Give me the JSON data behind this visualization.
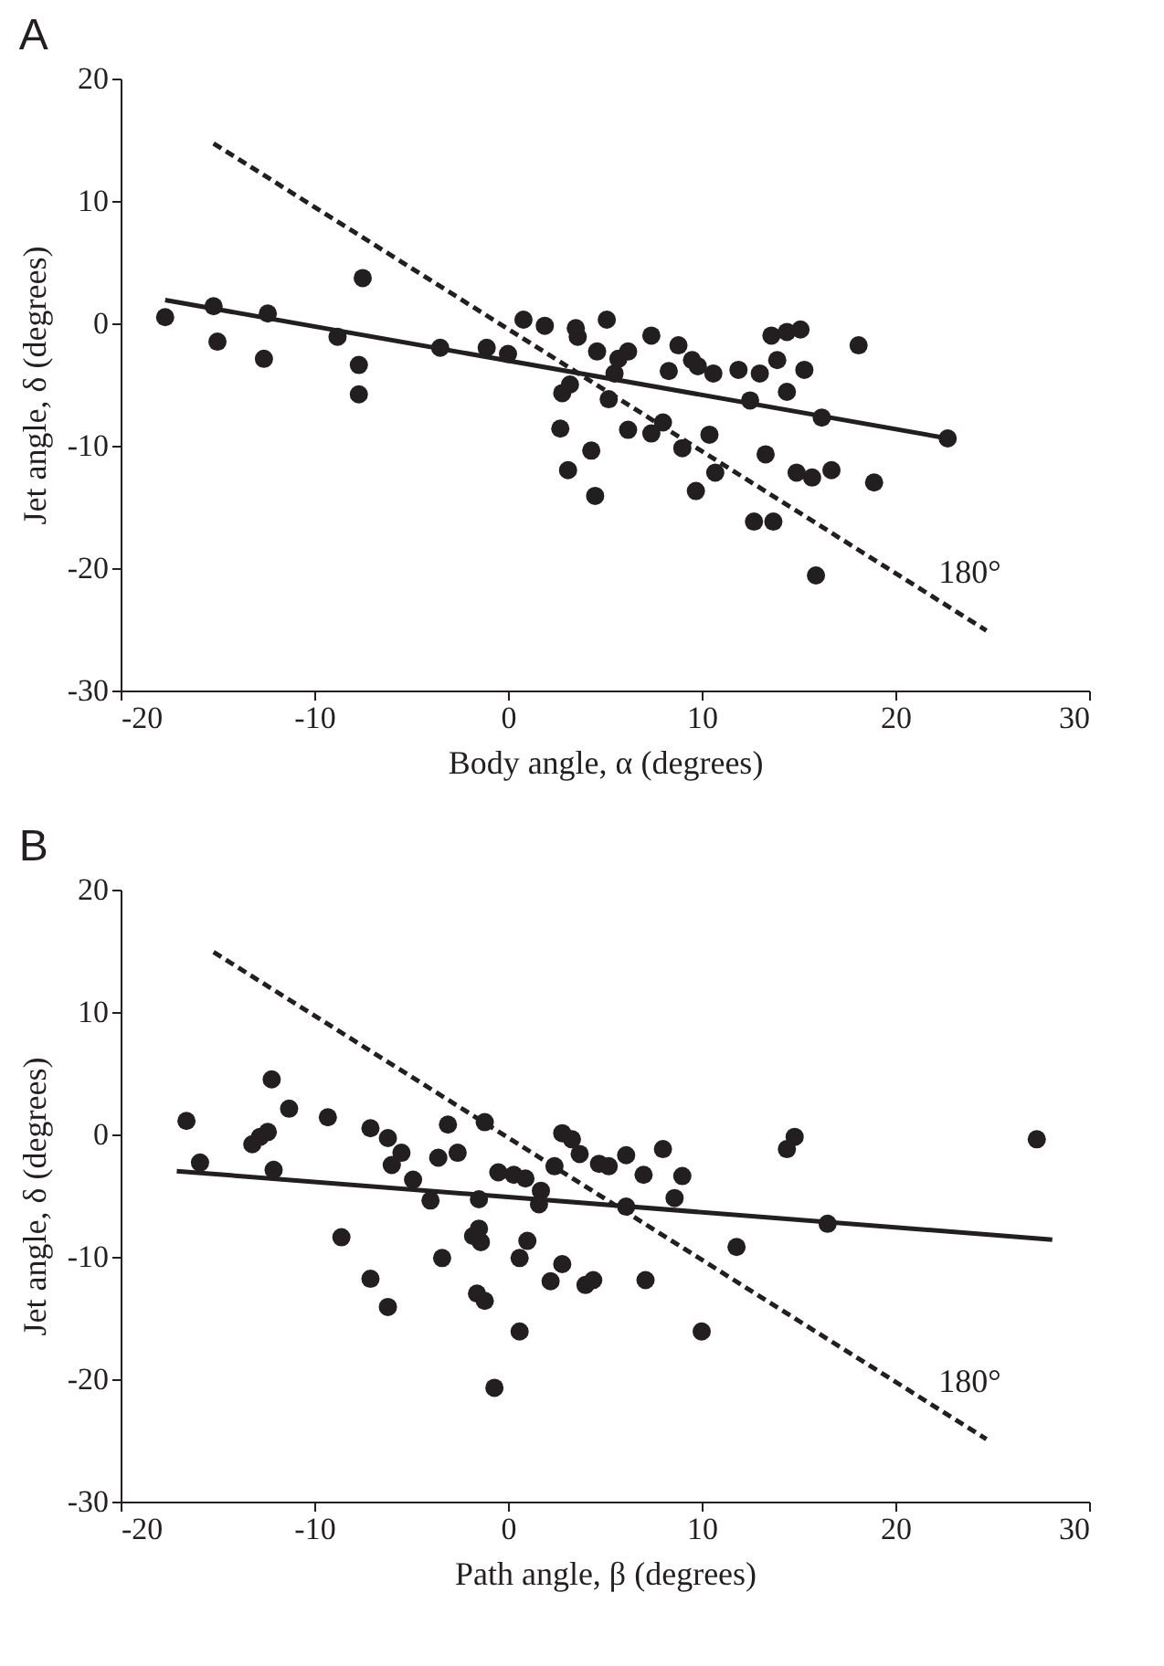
{
  "chart_data": [
    {
      "type": "scatter",
      "title": "A",
      "xlabel": "Body angle, α (degrees)",
      "ylabel": "Jet angle, δ (degrees)",
      "xlim": [
        -20,
        30
      ],
      "ylim": [
        -30,
        20
      ],
      "xticks": [
        -20,
        -10,
        0,
        10,
        20,
        30
      ],
      "yticks": [
        -30,
        -20,
        -10,
        0,
        10,
        20
      ],
      "series": [
        {
          "marker": "circle",
          "color": "#231f20",
          "x": [
            -17.7,
            -15.2,
            -15.0,
            -12.4,
            -12.6,
            -8.8,
            -7.7,
            -7.7,
            -7.5,
            -3.5,
            -1.1,
            0.0,
            0.8,
            1.9,
            3.5,
            3.6,
            5.1,
            4.6,
            6.2,
            5.7,
            5.5,
            3.2,
            2.8,
            5.2,
            2.7,
            6.2,
            7.4,
            4.3,
            3.1,
            4.5,
            7.4,
            8.8,
            9.5,
            9.8,
            8.3,
            10.6,
            11.9,
            13.0,
            13.9,
            15.3,
            14.4,
            12.5,
            16.2,
            13.6,
            14.4,
            15.1,
            18.1,
            22.7,
            8.0,
            9.0,
            10.4,
            10.7,
            9.7,
            13.3,
            14.9,
            15.7,
            16.7,
            18.9,
            12.7,
            13.7,
            15.9
          ],
          "values": [
            0.5,
            1.4,
            -1.5,
            0.8,
            -2.9,
            -1.1,
            -3.4,
            -5.8,
            3.7,
            -2.0,
            -2.0,
            -2.5,
            0.3,
            -0.2,
            -0.4,
            -1.1,
            0.3,
            -2.3,
            -2.3,
            -2.9,
            -4.1,
            -5.0,
            -5.7,
            -6.2,
            -8.6,
            -8.7,
            -9.0,
            -10.4,
            -12.0,
            -14.1,
            -1.0,
            -1.8,
            -3.0,
            -3.5,
            -3.9,
            -4.1,
            -3.8,
            -4.1,
            -3.0,
            -3.8,
            -5.6,
            -6.3,
            -7.7,
            -1.0,
            -0.7,
            -0.5,
            -1.8,
            -9.4,
            -8.1,
            -10.2,
            -9.1,
            -12.2,
            -13.7,
            -10.7,
            -12.2,
            -12.6,
            -12.0,
            -13.0,
            -16.2,
            -16.2,
            -20.6
          ]
        },
        {
          "type": "line",
          "line_style": "solid",
          "color": "#231f20",
          "x": [
            -17.7,
            22.7
          ],
          "values": [
            1.9,
            -9.4
          ]
        },
        {
          "type": "line",
          "line_style": "dashed",
          "name": "180°",
          "color": "#231f20",
          "x": [
            -15.2,
            24.7
          ],
          "values": [
            14.7,
            -25.1
          ]
        }
      ]
    },
    {
      "type": "scatter",
      "title": "B",
      "xlabel": "Path angle, β (degrees)",
      "ylabel": "Jet angle, δ (degrees)",
      "xlim": [
        -20,
        30
      ],
      "ylim": [
        -30,
        20
      ],
      "xticks": [
        -20,
        -10,
        0,
        10,
        20,
        30
      ],
      "yticks": [
        -30,
        -20,
        -10,
        0,
        10,
        20
      ],
      "series": [
        {
          "marker": "circle",
          "color": "#231f20",
          "x": [
            -16.6,
            -15.9,
            -12.2,
            -11.3,
            -13.2,
            -12.8,
            -12.4,
            -12.1,
            -9.3,
            -8.6,
            -7.1,
            -6.2,
            -5.5,
            -6.0,
            -4.9,
            -4.0,
            -7.1,
            -6.2,
            -3.6,
            -2.6,
            -3.1,
            -3.4,
            -1.2,
            -0.5,
            0.3,
            0.9,
            1.7,
            1.6,
            -1.5,
            -1.5,
            -1.8,
            -1.4,
            1.0,
            0.6,
            -1.6,
            -1.2,
            0.6,
            -0.7,
            2.8,
            2.2,
            4.0,
            4.4,
            2.8,
            3.3,
            3.7,
            2.4,
            4.7,
            5.2,
            6.1,
            7.0,
            6.1,
            7.1,
            8.0,
            9.0,
            8.6,
            11.8,
            10.0,
            14.8,
            14.4,
            16.5,
            27.3
          ],
          "values": [
            1.1,
            -2.3,
            4.5,
            2.1,
            -0.8,
            -0.2,
            0.2,
            -2.9,
            1.4,
            -8.4,
            0.5,
            -0.3,
            -1.5,
            -2.5,
            -3.7,
            -5.4,
            -11.8,
            -14.1,
            -1.9,
            -1.5,
            0.8,
            -10.1,
            1.0,
            -3.1,
            -3.3,
            -3.6,
            -4.6,
            -5.7,
            -5.3,
            -7.7,
            -8.3,
            -8.8,
            -8.7,
            -10.1,
            -13.0,
            -13.6,
            -16.1,
            -20.7,
            -10.6,
            -12.0,
            -12.3,
            -11.9,
            0.1,
            -0.4,
            -1.6,
            -2.6,
            -2.4,
            -2.6,
            -1.7,
            -3.3,
            -5.9,
            -11.9,
            -1.2,
            -3.4,
            -5.2,
            -9.2,
            -16.1,
            -0.2,
            -1.2,
            -7.3,
            -0.4
          ]
        },
        {
          "type": "line",
          "line_style": "solid",
          "color": "#231f20",
          "x": [
            -17.1,
            28.1
          ],
          "values": [
            -3.0,
            -8.6
          ]
        },
        {
          "type": "line",
          "line_style": "dashed",
          "name": "180°",
          "color": "#231f20",
          "x": [
            -15.2,
            24.7
          ],
          "values": [
            14.9,
            -24.9
          ]
        }
      ]
    }
  ]
}
